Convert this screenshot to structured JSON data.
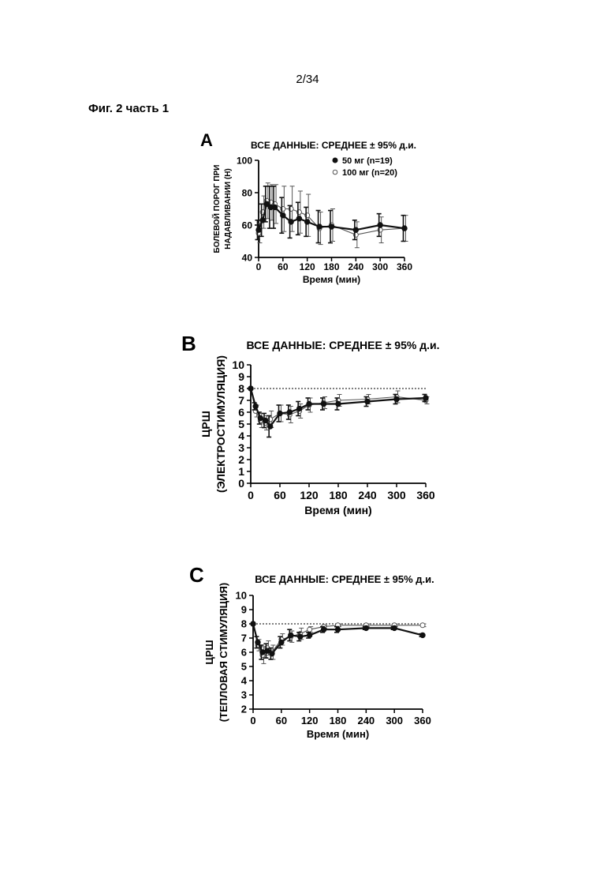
{
  "page": {
    "number": "2/34",
    "caption": "Фиг. 2 часть 1"
  },
  "chart_data": [
    {
      "panel": "A",
      "type": "line",
      "title": "ВСЕ ДАННЫЕ: СРЕДНЕЕ ± 95% д.и.",
      "xlabel": "Время (мин)",
      "ylabel": [
        "БОЛЕВОЙ ПОРОГ ПРИ",
        "НАДАВЛИВАНИИ (Н)"
      ],
      "xlim": [
        0,
        360
      ],
      "ylim": [
        40,
        100
      ],
      "xticks": [
        0,
        60,
        120,
        180,
        240,
        300,
        360
      ],
      "yticks": [
        40,
        60,
        80,
        100
      ],
      "grid": false,
      "legend": "top-right",
      "reference_line": null,
      "series": [
        {
          "name": "50 мг (n=19)",
          "marker": "filled",
          "color": "#111111",
          "x": [
            0,
            10,
            20,
            30,
            40,
            60,
            80,
            100,
            120,
            150,
            180,
            240,
            300,
            360
          ],
          "y": [
            57,
            63,
            73,
            71,
            71,
            66,
            62,
            64,
            62,
            59,
            59,
            57,
            60,
            58
          ],
          "err": [
            6,
            10,
            11,
            13,
            13,
            11,
            10,
            10,
            9,
            10,
            10,
            6,
            7,
            8
          ]
        },
        {
          "name": "100 мг (n=20)",
          "marker": "open",
          "color": "#555555",
          "x": [
            0,
            10,
            20,
            30,
            40,
            60,
            80,
            100,
            120,
            150,
            180,
            240,
            300,
            360
          ],
          "y": [
            55,
            68,
            75,
            74,
            73,
            70,
            70,
            68,
            66,
            58,
            60,
            54,
            57,
            58
          ],
          "err": [
            6,
            10,
            11,
            11,
            12,
            14,
            14,
            13,
            13,
            10,
            10,
            8,
            8,
            8
          ]
        }
      ]
    },
    {
      "panel": "B",
      "type": "line",
      "title": "ВСЕ ДАННЫЕ: СРЕДНЕЕ ± 95% д.и.",
      "xlabel": "Время (мин)",
      "ylabel": [
        "ЦРШ",
        "(ЭЛЕКТРОСТИМУЛЯЦИЯ)"
      ],
      "xlim": [
        0,
        360
      ],
      "ylim": [
        0,
        10
      ],
      "xticks": [
        0,
        60,
        120,
        180,
        240,
        300,
        360
      ],
      "yticks": [
        0,
        1,
        2,
        3,
        4,
        5,
        6,
        7,
        8,
        9,
        10
      ],
      "grid": false,
      "reference_line": 8,
      "series": [
        {
          "marker": "filled",
          "color": "#111111",
          "x": [
            0,
            10,
            20,
            30,
            40,
            60,
            80,
            100,
            120,
            150,
            180,
            240,
            300,
            360
          ],
          "y": [
            8,
            6.5,
            5.5,
            5.3,
            4.8,
            5.9,
            6.0,
            6.3,
            6.7,
            6.7,
            6.7,
            6.9,
            7.1,
            7.2
          ],
          "err": [
            0,
            0.3,
            0.5,
            0.6,
            0.9,
            0.7,
            0.6,
            0.6,
            0.5,
            0.5,
            0.5,
            0.4,
            0.4,
            0.3
          ]
        },
        {
          "marker": "open",
          "color": "#555555",
          "x": [
            0,
            10,
            20,
            30,
            40,
            60,
            80,
            100,
            120,
            150,
            180,
            240,
            300,
            360
          ],
          "y": [
            8,
            6.1,
            5.3,
            5.1,
            5.4,
            5.9,
            5.8,
            6.1,
            6.6,
            6.8,
            7.0,
            7.1,
            7.3,
            7.0
          ],
          "err": [
            0,
            0.5,
            0.6,
            0.6,
            0.7,
            0.7,
            0.7,
            0.6,
            0.6,
            0.5,
            0.5,
            0.4,
            0.5,
            0.3
          ]
        }
      ]
    },
    {
      "panel": "C",
      "type": "line",
      "title": "ВСЕ ДАННЫЕ: СРЕДНЕЕ ± 95% д.и.",
      "xlabel": "Время (мин)",
      "ylabel": [
        "ЦРШ",
        "(ТЕПЛОВАЯ СТИМУЛЯЦИЯ)"
      ],
      "xlim": [
        0,
        360
      ],
      "ylim": [
        2,
        10
      ],
      "xticks": [
        0,
        60,
        120,
        180,
        240,
        300,
        360
      ],
      "yticks": [
        2,
        3,
        4,
        5,
        6,
        7,
        8,
        9,
        10
      ],
      "grid": false,
      "reference_line": 8,
      "series": [
        {
          "marker": "filled",
          "color": "#111111",
          "x": [
            0,
            10,
            20,
            30,
            40,
            60,
            80,
            100,
            120,
            150,
            180,
            240,
            300,
            360
          ],
          "y": [
            8,
            6.7,
            6.0,
            6.1,
            5.9,
            6.7,
            7.2,
            7.1,
            7.2,
            7.6,
            7.6,
            7.7,
            7.7,
            7.2
          ],
          "err": [
            0,
            0.4,
            0.5,
            0.5,
            0.4,
            0.4,
            0.4,
            0.3,
            0.2,
            0.2,
            0.2,
            0.1,
            0.1,
            0.1
          ]
        },
        {
          "marker": "open",
          "color": "#555555",
          "x": [
            0,
            10,
            20,
            30,
            40,
            60,
            80,
            100,
            120,
            150,
            180,
            240,
            300,
            360
          ],
          "y": [
            8,
            6.5,
            5.8,
            6.3,
            6.0,
            6.9,
            7.1,
            7.3,
            7.6,
            7.8,
            7.9,
            7.9,
            7.9,
            7.9
          ],
          "err": [
            0,
            0.4,
            0.6,
            0.5,
            0.5,
            0.4,
            0.4,
            0.4,
            0.2,
            0.1,
            0.1,
            0.1,
            0.1,
            0.1
          ]
        }
      ]
    }
  ]
}
